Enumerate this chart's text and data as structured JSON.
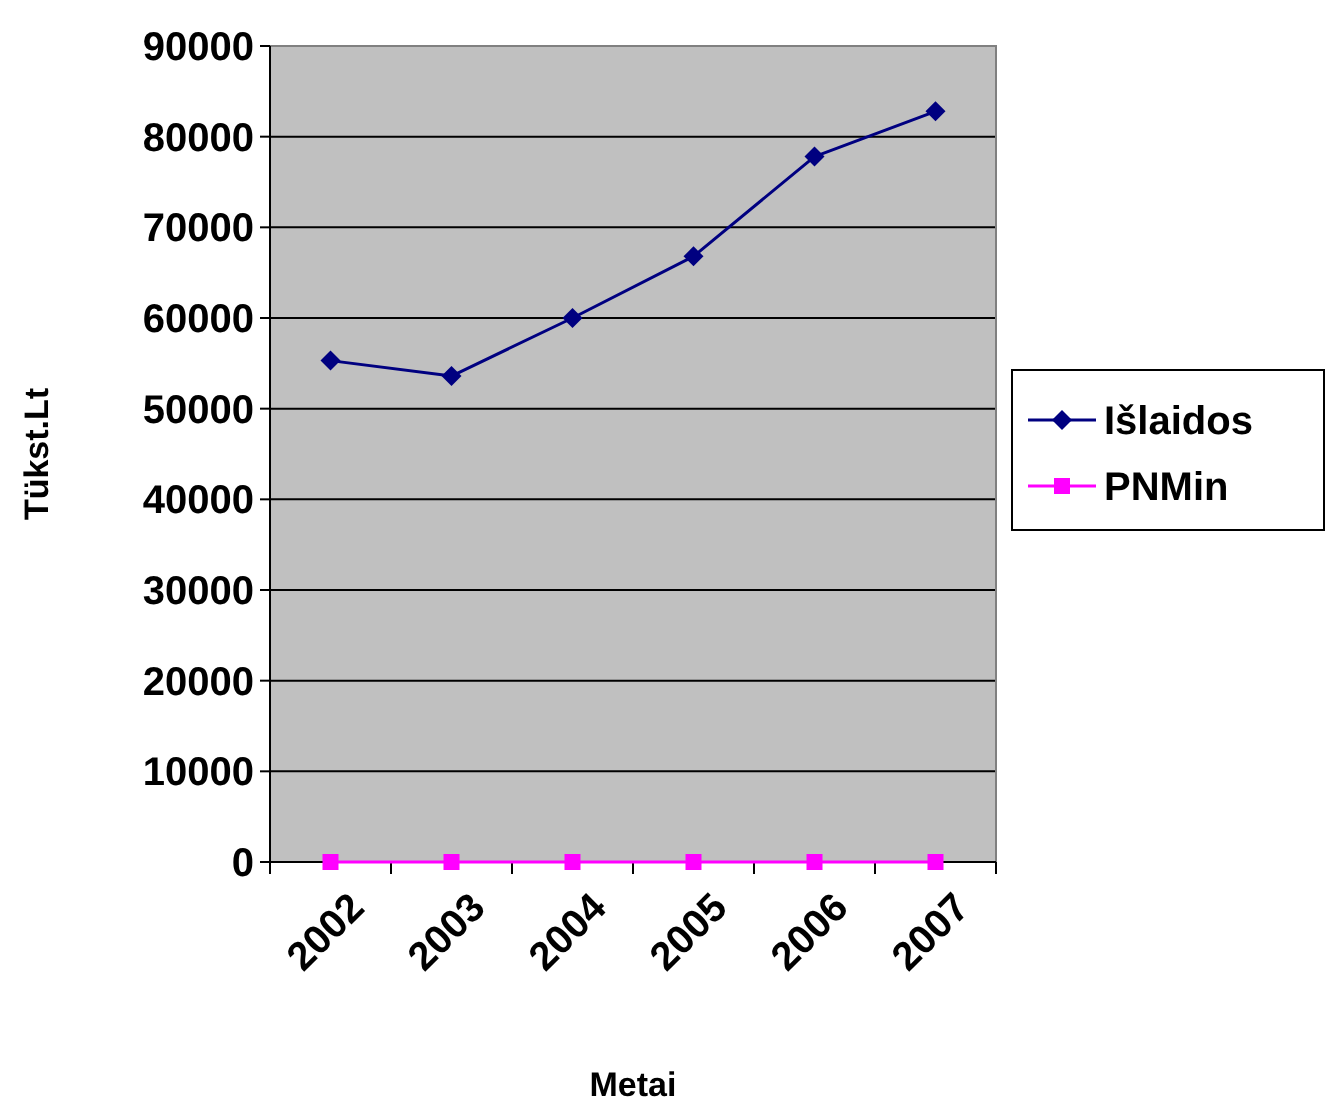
{
  "chart_data": {
    "type": "line",
    "xlabel": "Metai",
    "ylabel": "Tükst.Lt",
    "categories": [
      "2002",
      "2003",
      "2004",
      "2005",
      "2006",
      "2007"
    ],
    "series": [
      {
        "name": "Išlaidos",
        "color": "#000080",
        "values": [
          55300,
          53600,
          60000,
          66800,
          77800,
          82800
        ],
        "marker": "diamond"
      },
      {
        "name": "PNMin",
        "color": "#ff00ff",
        "values": [
          0,
          0,
          0,
          0,
          0,
          0
        ],
        "marker": "square"
      }
    ],
    "ylim": [
      0,
      90000
    ],
    "yticks": [
      0,
      10000,
      20000,
      30000,
      40000,
      50000,
      60000,
      70000,
      80000,
      90000
    ],
    "grid": "y",
    "legend": "right"
  }
}
